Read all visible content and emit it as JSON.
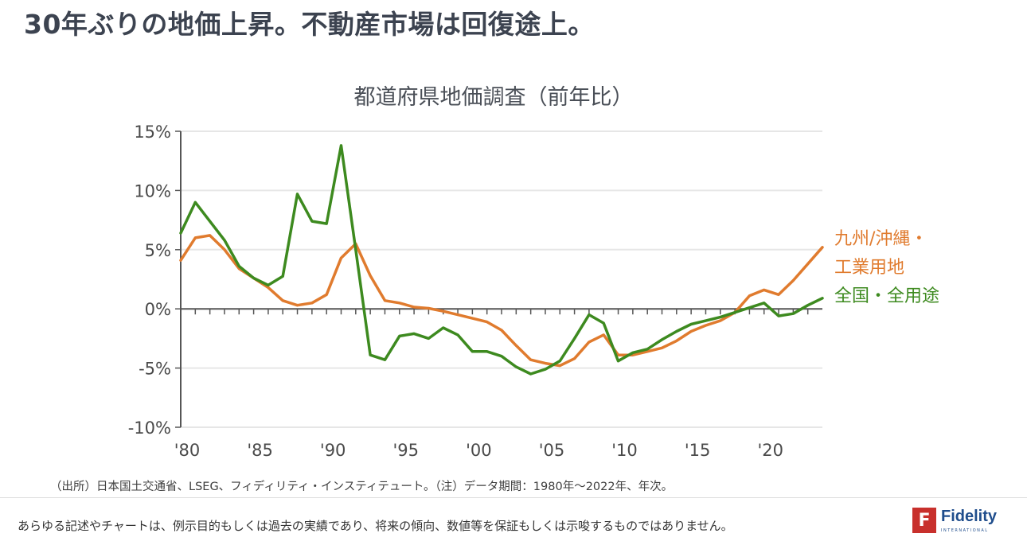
{
  "headline": "30年ぶりの地価上昇。不動産市場は回復途上。",
  "source_note": "（出所）日本国土交通省、LSEG、フィディリティ・インスティテュート。（注）データ期間：1980年～2022年、年次。",
  "disclaimer": "あらゆる記述やチャートは、例示目的もしくは過去の実績であり、将来の傾向、数値等を保証もしくは示唆するものではありません。",
  "logo": {
    "icon": "fidelity-f-icon",
    "word": "Fidelity",
    "sub": "INTERNATIONAL",
    "mark_letter": "F"
  },
  "legend": {
    "kyushu_line1": "九州/沖縄・",
    "kyushu_line2": "工業用地",
    "national": "全国・全用途"
  },
  "colors": {
    "kyushu": "#e07b2e",
    "national": "#3d8a1f",
    "grid": "#e6e6e6",
    "axis": "#555555"
  },
  "chart_data": {
    "type": "line",
    "title": "都道府県地価調査（前年比）",
    "xlabel": "",
    "ylabel": "",
    "ylim": [
      -10,
      15
    ],
    "xlim": [
      1980,
      2024
    ],
    "grid": true,
    "legend_placement": "right",
    "yticks": [
      {
        "v": 15,
        "label": "15%"
      },
      {
        "v": 10,
        "label": "10%"
      },
      {
        "v": 5,
        "label": "5%"
      },
      {
        "v": 0,
        "label": "0%"
      },
      {
        "v": -5,
        "label": "-5%"
      },
      {
        "v": -10,
        "label": "-10%"
      }
    ],
    "xticks": [
      {
        "v": 1980,
        "label": "'80"
      },
      {
        "v": 1985,
        "label": "'85"
      },
      {
        "v": 1990,
        "label": "'90"
      },
      {
        "v": 1995,
        "label": "'95"
      },
      {
        "v": 2000,
        "label": "'00"
      },
      {
        "v": 2005,
        "label": "'05"
      },
      {
        "v": 2010,
        "label": "'10"
      },
      {
        "v": 2015,
        "label": "'15"
      },
      {
        "v": 2020,
        "label": "'20"
      }
    ],
    "x": [
      1980,
      1981,
      1982,
      1983,
      1984,
      1985,
      1986,
      1987,
      1988,
      1989,
      1990,
      1991,
      1992,
      1993,
      1994,
      1995,
      1996,
      1997,
      1998,
      1999,
      2000,
      2001,
      2002,
      2003,
      2004,
      2005,
      2006,
      2007,
      2008,
      2009,
      2010,
      2011,
      2012,
      2013,
      2014,
      2015,
      2016,
      2017,
      2018,
      2019,
      2020,
      2021,
      2022,
      2023,
      2024
    ],
    "series": [
      {
        "name": "九州/沖縄・工業用地",
        "color": "#e07b2e",
        "values": [
          4.1,
          6.0,
          6.2,
          5.0,
          3.4,
          2.6,
          1.8,
          0.7,
          0.3,
          0.5,
          1.2,
          4.3,
          5.5,
          2.8,
          0.7,
          0.5,
          0.15,
          0.05,
          -0.2,
          -0.5,
          -0.8,
          -1.1,
          -1.8,
          -3.1,
          -4.3,
          -4.6,
          -4.8,
          -4.2,
          -2.8,
          -2.2,
          -3.9,
          -3.9,
          -3.6,
          -3.3,
          -2.7,
          -1.9,
          -1.4,
          -1.0,
          -0.3,
          1.1,
          1.6,
          1.2,
          2.4,
          3.8,
          5.2
        ]
      },
      {
        "name": "全国・全用途",
        "color": "#3d8a1f",
        "values": [
          6.4,
          9.0,
          7.4,
          5.8,
          3.6,
          2.6,
          2.0,
          2.75,
          9.7,
          7.4,
          7.2,
          13.8,
          5.0,
          -3.9,
          -4.3,
          -2.3,
          -2.1,
          -2.5,
          -1.6,
          -2.2,
          -3.6,
          -3.6,
          -4.0,
          -4.9,
          -5.5,
          -5.1,
          -4.4,
          -2.5,
          -0.5,
          -1.2,
          -4.4,
          -3.7,
          -3.4,
          -2.6,
          -1.9,
          -1.3,
          -1.0,
          -0.7,
          -0.3,
          0.1,
          0.5,
          -0.6,
          -0.4,
          0.3,
          0.9
        ]
      }
    ]
  }
}
